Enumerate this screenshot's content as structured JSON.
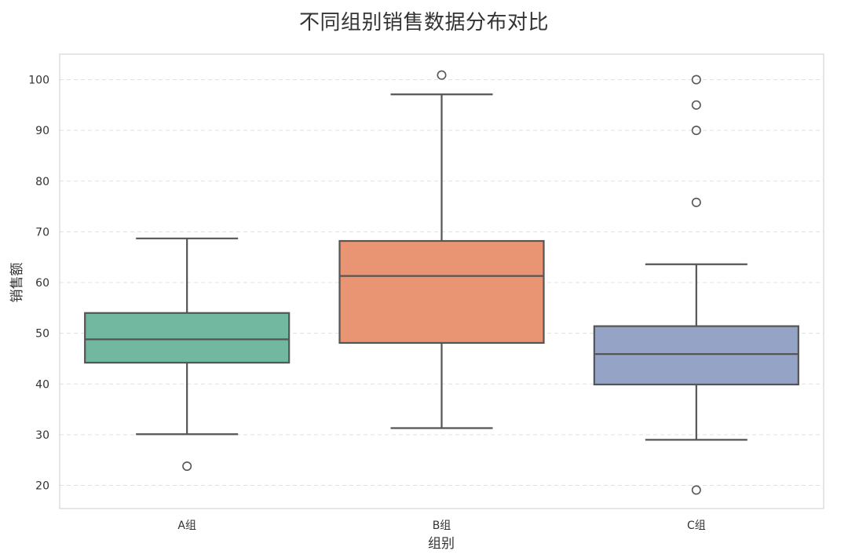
{
  "chart_data": {
    "type": "box",
    "title": "不同组别销售数据分布对比",
    "xlabel": "组别",
    "ylabel": "销售额",
    "ylim": [
      15,
      105
    ],
    "yticks": [
      20,
      30,
      40,
      50,
      60,
      70,
      80,
      90,
      100
    ],
    "grid": "horizontal dashed",
    "categories": [
      "A组",
      "B组",
      "C组"
    ],
    "boxes": [
      {
        "category": "A组",
        "color": "#72B7A0",
        "whisker_low": 30.1,
        "q1": 44.2,
        "median": 48.8,
        "q3": 54.0,
        "whisker_high": 68.7,
        "outliers": [
          23.8
        ]
      },
      {
        "category": "B组",
        "color": "#E99574",
        "whisker_low": 31.3,
        "q1": 48.1,
        "median": 61.3,
        "q3": 68.2,
        "whisker_high": 97.1,
        "outliers": [
          100.9
        ]
      },
      {
        "category": "C组",
        "color": "#94A3C6",
        "whisker_low": 29.0,
        "q1": 39.9,
        "median": 45.9,
        "q3": 51.4,
        "whisker_high": 63.6,
        "outliers": [
          19.1,
          75.8,
          90.0,
          95.0,
          100.0
        ]
      }
    ]
  }
}
